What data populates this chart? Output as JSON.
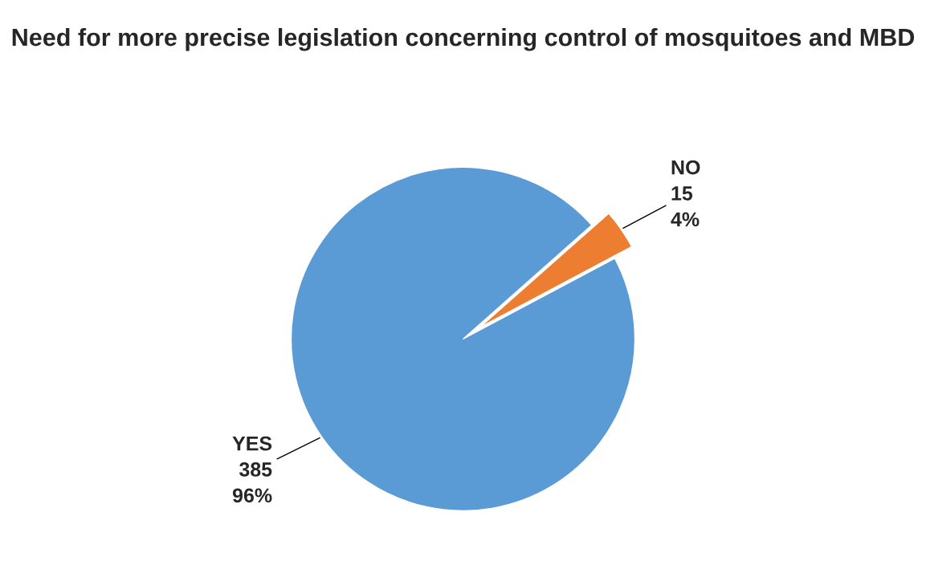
{
  "chart_data": {
    "type": "pie",
    "title": "Need for more precise legislation concerning control of mosquitoes and MBD",
    "categories": [
      "YES",
      "NO"
    ],
    "values": [
      385,
      15
    ],
    "value_labels": [
      "385\n96%",
      "15\n4%"
    ],
    "colors": [
      "#5b9bd5",
      "#ed7d31"
    ]
  }
}
